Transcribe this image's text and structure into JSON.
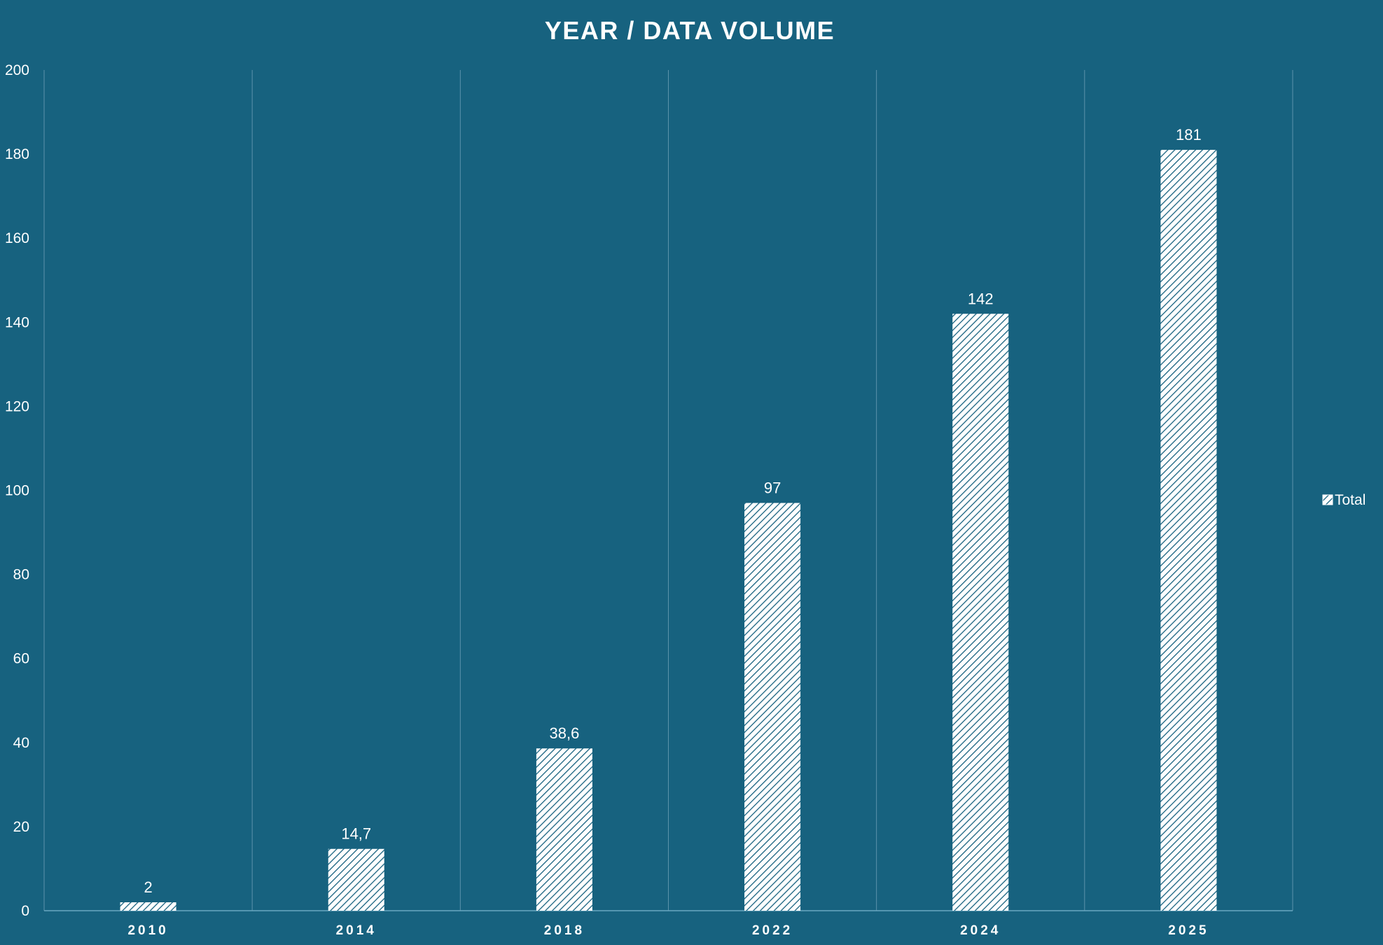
{
  "colors": {
    "background": "#17627f",
    "grid": "#5c93ab",
    "axis": "#6aa7c0",
    "text": "#ffffff",
    "bar_fill": "#ffffff",
    "bar_hatch": "#17627f"
  },
  "chart_data": {
    "type": "bar",
    "title": "YEAR / DATA VOLUME",
    "xlabel": "",
    "ylabel": "",
    "categories": [
      "2010",
      "2014",
      "2018",
      "2022",
      "2024",
      "2025"
    ],
    "series": [
      {
        "name": "Total",
        "values": [
          2,
          14.7,
          38.6,
          97,
          142,
          181
        ],
        "data_labels": [
          "2",
          "14,7",
          "38,6",
          "97",
          "142",
          "181"
        ],
        "pattern": "diagonal-hatch"
      }
    ],
    "ylim": [
      0,
      200
    ],
    "yticks": [
      0,
      20,
      40,
      60,
      80,
      100,
      120,
      140,
      160,
      180,
      200
    ],
    "gridlines": "vertical category separators",
    "legend_position": "right"
  }
}
